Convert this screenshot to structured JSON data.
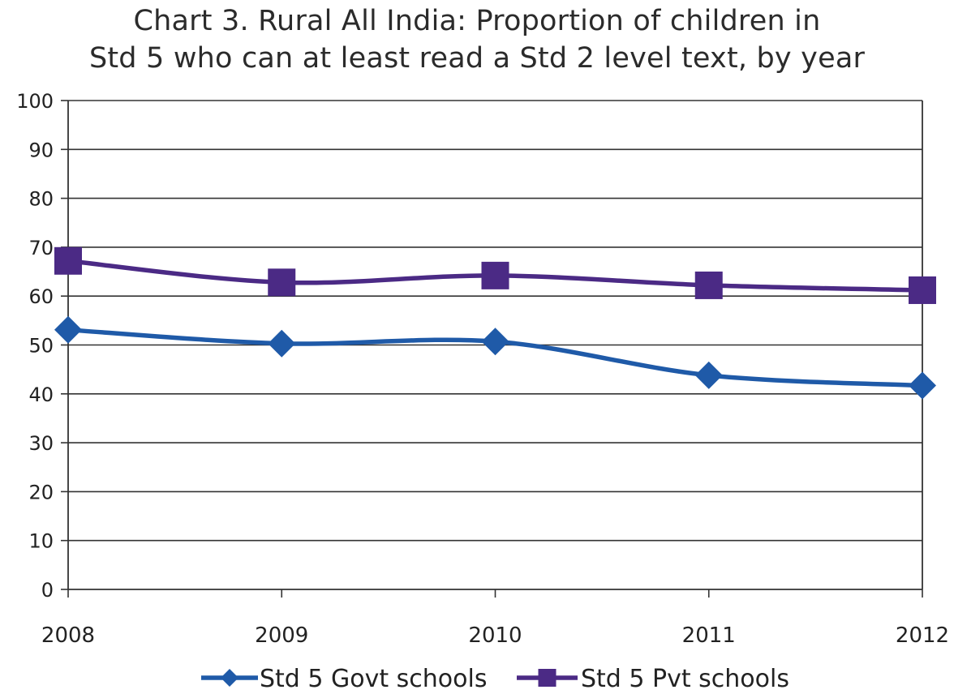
{
  "chart_data": {
    "type": "line",
    "title": "Chart 3. Rural All India: Proportion of children in Std 5 who can at least read a Std 2 level text, by year",
    "title_lines": [
      "Chart 3. Rural All India: Proportion of children in",
      "Std 5 who can at least read a Std 2 level text, by year"
    ],
    "x": [
      "2008",
      "2009",
      "2010",
      "2011",
      "2012"
    ],
    "series": [
      {
        "name": "Std 5 Govt schools",
        "values": [
          53.1,
          50.3,
          50.7,
          43.8,
          41.7
        ],
        "color": "#1f5aa8",
        "marker": "diamond"
      },
      {
        "name": "Std 5 Pvt schools",
        "values": [
          67.2,
          62.8,
          64.2,
          62.2,
          61.2
        ],
        "color": "#4b2a85",
        "marker": "square"
      }
    ],
    "yticks": [
      "0",
      "10",
      "20",
      "30",
      "40",
      "50",
      "60",
      "70",
      "80",
      "90",
      "100"
    ],
    "ylim": [
      0,
      100
    ],
    "grid": true,
    "legend_position": "bottom",
    "xlabel": "",
    "ylabel": ""
  }
}
